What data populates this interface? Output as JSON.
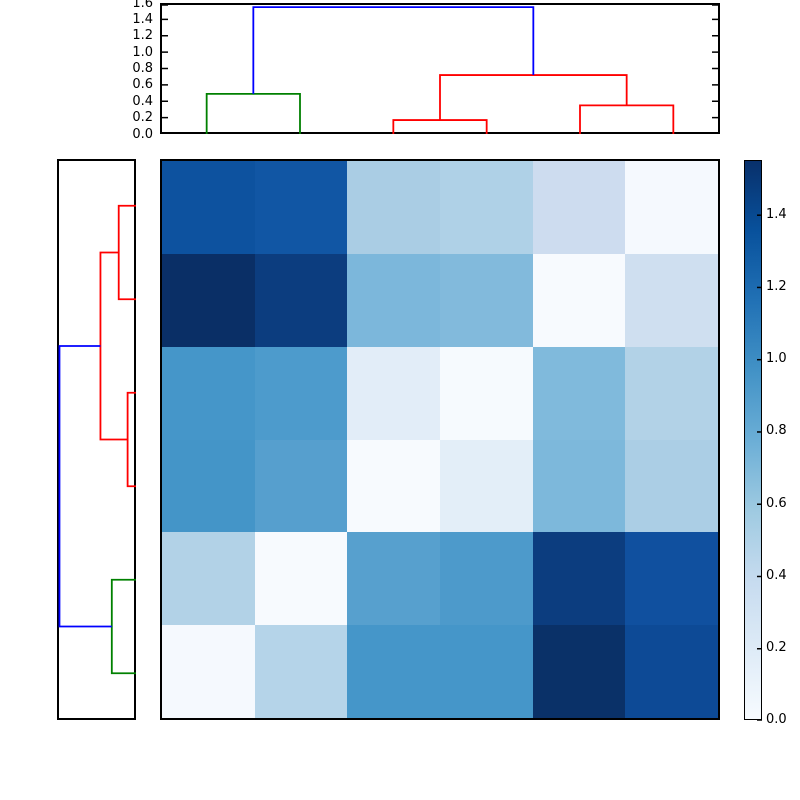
{
  "figure": {
    "background": "#ffffff",
    "title": ""
  },
  "chart_data": {
    "type": "heatmap",
    "description": "Hierarchically clustered distance matrix heatmap with column dendrogram (top), row dendrogram (left) and colorbar (right). No row/column labels are shown.",
    "colormap": "Blues",
    "vmin": 0.0,
    "vmax": 1.55,
    "n_rows": 6,
    "n_cols": 6,
    "matrix_values": [
      [
        1.35,
        1.32,
        0.55,
        0.53,
        0.35,
        0.0
      ],
      [
        1.54,
        1.46,
        0.72,
        0.7,
        0.0,
        0.34
      ],
      [
        0.96,
        0.92,
        0.17,
        0.0,
        0.7,
        0.49
      ],
      [
        0.96,
        0.89,
        0.0,
        0.17,
        0.71,
        0.54
      ],
      [
        0.49,
        0.0,
        0.9,
        0.92,
        1.46,
        1.36
      ],
      [
        0.0,
        0.5,
        0.96,
        0.96,
        1.53,
        1.4
      ]
    ],
    "cell_colors": [
      [
        "#0d529f",
        "#1156a4",
        "#aacde4",
        "#afd1e7",
        "#cddcef",
        "#f5f9fe"
      ],
      [
        "#0a2f66",
        "#0c3d7f",
        "#7cb7db",
        "#82badc",
        "#f7fafe",
        "#cfdff0"
      ],
      [
        "#4596c9",
        "#4d9bcc",
        "#e2edf8",
        "#f6fafe",
        "#80badc",
        "#b2d2e7"
      ],
      [
        "#4495c8",
        "#569fce",
        "#f7fafe",
        "#e3eef8",
        "#7db8db",
        "#abcee5"
      ],
      [
        "#b2d2e7",
        "#f7fafe",
        "#57a0ce",
        "#4d9acb",
        "#0c3d7f",
        "#10509f"
      ],
      [
        "#f5f9fe",
        "#b5d4e9",
        "#4596c9",
        "#4596c9",
        "#0a3168",
        "#0d4a96"
      ]
    ],
    "column_dendrogram": {
      "orientation": "top",
      "ylim": [
        0,
        1.6
      ],
      "tick_labels": [
        "0.0",
        "0.2",
        "0.4",
        "0.6",
        "0.8",
        "1.0",
        "1.2",
        "1.4",
        "1.6"
      ],
      "tick_values": [
        0,
        0.2,
        0.4,
        0.6,
        0.8,
        1.0,
        1.2,
        1.4,
        1.6
      ],
      "merges": [
        {
          "children_pos": [
            0.5,
            1.5
          ],
          "children_h": [
            0,
            0
          ],
          "height": 0.49,
          "color": "#008000"
        },
        {
          "children_pos": [
            2.5,
            3.5
          ],
          "children_h": [
            0,
            0
          ],
          "height": 0.17,
          "color": "#ff0000"
        },
        {
          "children_pos": [
            4.5,
            5.5
          ],
          "children_h": [
            0,
            0
          ],
          "height": 0.35,
          "color": "#ff0000"
        },
        {
          "children_pos": [
            3.0,
            5.0
          ],
          "children_h": [
            0.17,
            0.35
          ],
          "height": 0.72,
          "color": "#ff0000"
        },
        {
          "children_pos": [
            1.0,
            4.0
          ],
          "children_h": [
            0.49,
            0.72
          ],
          "height": 1.55,
          "color": "#0000ff"
        }
      ]
    },
    "row_dendrogram": {
      "orientation": "left",
      "xlim": [
        0,
        1.6
      ],
      "tick_labels": [],
      "merges": [
        {
          "children_pos": [
            0.5,
            1.5
          ],
          "children_h": [
            0,
            0
          ],
          "height": 0.35,
          "color": "#ff0000"
        },
        {
          "children_pos": [
            2.5,
            3.5
          ],
          "children_h": [
            0,
            0
          ],
          "height": 0.17,
          "color": "#ff0000"
        },
        {
          "children_pos": [
            1.0,
            3.0
          ],
          "children_h": [
            0.35,
            0.17
          ],
          "height": 0.72,
          "color": "#ff0000"
        },
        {
          "children_pos": [
            4.5,
            5.5
          ],
          "children_h": [
            0,
            0
          ],
          "height": 0.49,
          "color": "#008000"
        },
        {
          "children_pos": [
            2.0,
            5.0
          ],
          "children_h": [
            0.72,
            0.49
          ],
          "height": 1.55,
          "color": "#0000ff"
        }
      ]
    },
    "colorbar": {
      "tick_labels": [
        "0.0",
        "0.2",
        "0.4",
        "0.6",
        "0.8",
        "1.0",
        "1.2",
        "1.4"
      ],
      "tick_values": [
        0,
        0.2,
        0.4,
        0.6,
        0.8,
        1.0,
        1.2,
        1.4
      ],
      "vmin": 0.0,
      "vmax": 1.55,
      "gradient": [
        {
          "t": 0.0,
          "color": "#f7fbff"
        },
        {
          "t": 0.125,
          "color": "#deebf7"
        },
        {
          "t": 0.25,
          "color": "#c6dbef"
        },
        {
          "t": 0.375,
          "color": "#9ecae1"
        },
        {
          "t": 0.5,
          "color": "#6baed6"
        },
        {
          "t": 0.625,
          "color": "#4292c6"
        },
        {
          "t": 0.75,
          "color": "#2171b5"
        },
        {
          "t": 0.875,
          "color": "#08519c"
        },
        {
          "t": 1.0,
          "color": "#08306b"
        }
      ]
    },
    "style": {
      "spine_color": "#000000",
      "spine_width": 2,
      "dendro_line_width": 1.8,
      "tick_length": 6,
      "tick_direction": "in"
    }
  }
}
